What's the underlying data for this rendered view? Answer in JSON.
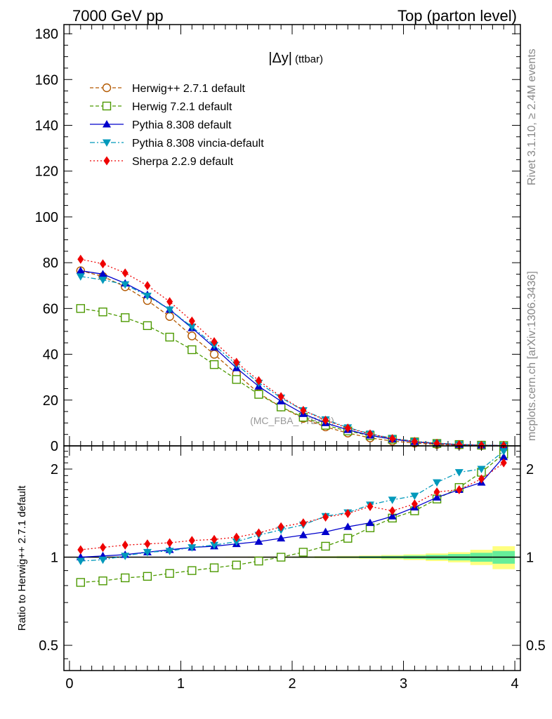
{
  "header": {
    "left_title": "7000 GeV pp",
    "right_title": "Top (parton level)"
  },
  "side_labels": {
    "rivet": "Rivet 3.1.10, ≥ 2.4M events",
    "mcplots": "mcplots.cern.ch [arXiv:1306.3436]"
  },
  "watermark": "(MC_FBA_TTBAR)",
  "colors": {
    "herwigpp": "#b35900",
    "herwig7": "#4c9900",
    "pythia": "#0000cc",
    "vincia": "#0099bb",
    "sherpa": "#ee0000",
    "band_outer": "#ffff80",
    "band_inner": "#66ee99"
  },
  "chart_data": [
    {
      "type": "line",
      "title_main": "|Δy|",
      "title_sub": "(ttbar)",
      "xlim": [
        -0.05,
        4.05
      ],
      "ylim": [
        0,
        184
      ],
      "x": [
        0.1,
        0.3,
        0.5,
        0.7,
        0.9,
        1.1,
        1.3,
        1.5,
        1.7,
        1.9,
        2.1,
        2.3,
        2.5,
        2.7,
        2.9,
        3.1,
        3.3,
        3.5,
        3.7,
        3.9
      ],
      "yticks": [
        "0",
        "20",
        "40",
        "60",
        "80",
        "100",
        "120",
        "140",
        "160",
        "180"
      ],
      "series": [
        {
          "name": "Herwig++ 2.7.1 default",
          "key": "herwigpp",
          "marker": "circle-open",
          "values": [
            76.5,
            74.0,
            69.5,
            63.5,
            56.5,
            48.0,
            40.0,
            31.5,
            23.0,
            17.0,
            12.0,
            8.3,
            5.6,
            3.5,
            2.1,
            1.2,
            0.65,
            0.33,
            0.15,
            0.05
          ]
        },
        {
          "name": "Herwig 7.2.1 default",
          "key": "herwig7",
          "marker": "square-open",
          "values": [
            60.0,
            58.5,
            56.0,
            52.5,
            47.5,
            42.0,
            35.5,
            29.0,
            22.5,
            17.0,
            12.5,
            9.0,
            6.5,
            4.5,
            2.9,
            1.75,
            1.05,
            0.58,
            0.3,
            0.14
          ]
        },
        {
          "name": "Pythia 8.308 default",
          "key": "pythia",
          "marker": "triangle-up",
          "values": [
            76.5,
            75.0,
            71.0,
            66.0,
            59.5,
            51.5,
            43.0,
            34.0,
            26.0,
            19.5,
            14.0,
            10.0,
            7.0,
            4.6,
            2.9,
            1.75,
            1.0,
            0.55,
            0.27,
            0.11
          ]
        },
        {
          "name": "Pythia 8.308 vincia-default",
          "key": "vincia",
          "marker": "triangle-down",
          "values": [
            74.0,
            72.5,
            70.5,
            65.5,
            59.5,
            52.0,
            44.0,
            35.5,
            27.5,
            21.0,
            15.5,
            11.5,
            8.0,
            5.3,
            3.3,
            2.0,
            1.2,
            0.65,
            0.31,
            0.12
          ]
        },
        {
          "name": "Sherpa 2.2.9 default",
          "key": "sherpa",
          "marker": "diamond",
          "values": [
            81.5,
            79.5,
            75.5,
            70.0,
            63.0,
            54.5,
            45.5,
            36.5,
            28.5,
            21.5,
            15.5,
            11.2,
            7.8,
            5.2,
            3.2,
            1.9,
            1.1,
            0.57,
            0.28,
            0.11
          ]
        }
      ]
    },
    {
      "type": "line",
      "ylabel": "Ratio to Herwig++ 2.7.1 default",
      "yscale": "log",
      "ylim": [
        0.41,
        2.4
      ],
      "xlim": [
        -0.05,
        4.05
      ],
      "xticks": [
        "0",
        "1",
        "2",
        "3",
        "4"
      ],
      "yticks": [
        "0.5",
        "1",
        "2"
      ],
      "x": [
        0.1,
        0.3,
        0.5,
        0.7,
        0.9,
        1.1,
        1.3,
        1.5,
        1.7,
        1.9,
        2.1,
        2.3,
        2.5,
        2.7,
        2.9,
        3.1,
        3.3,
        3.5,
        3.7,
        3.9
      ],
      "reference_band": {
        "x_edges": [
          0.0,
          0.2,
          0.4,
          0.6,
          0.8,
          1.0,
          1.2,
          1.4,
          1.6,
          1.8,
          2.0,
          2.2,
          2.4,
          2.6,
          2.8,
          3.0,
          3.2,
          3.4,
          3.6,
          3.8,
          4.0
        ],
        "outer_halfwidth": [
          0.003,
          0.003,
          0.003,
          0.003,
          0.003,
          0.003,
          0.003,
          0.004,
          0.005,
          0.005,
          0.006,
          0.008,
          0.01,
          0.013,
          0.017,
          0.022,
          0.03,
          0.04,
          0.06,
          0.09
        ],
        "inner_halfwidth": [
          0.002,
          0.002,
          0.002,
          0.002,
          0.002,
          0.002,
          0.002,
          0.002,
          0.003,
          0.003,
          0.004,
          0.005,
          0.006,
          0.008,
          0.01,
          0.013,
          0.018,
          0.025,
          0.035,
          0.05
        ]
      },
      "series": [
        {
          "name": "Herwig 7.2.1 default",
          "key": "herwig7",
          "marker": "square-open",
          "values": [
            0.82,
            0.83,
            0.85,
            0.86,
            0.88,
            0.9,
            0.92,
            0.94,
            0.97,
            1.0,
            1.04,
            1.09,
            1.16,
            1.26,
            1.36,
            1.44,
            1.58,
            1.73,
            1.95,
            2.25
          ]
        },
        {
          "name": "Pythia 8.308 default",
          "key": "pythia",
          "marker": "triangle-up",
          "values": [
            1.0,
            1.01,
            1.02,
            1.04,
            1.06,
            1.08,
            1.09,
            1.11,
            1.13,
            1.16,
            1.19,
            1.22,
            1.27,
            1.31,
            1.38,
            1.48,
            1.6,
            1.7,
            1.8,
            2.2
          ]
        },
        {
          "name": "Pythia 8.308 vincia-default",
          "key": "vincia",
          "marker": "triangle-down",
          "values": [
            0.97,
            0.98,
            1.01,
            1.04,
            1.05,
            1.08,
            1.1,
            1.13,
            1.19,
            1.24,
            1.29,
            1.38,
            1.42,
            1.51,
            1.57,
            1.62,
            1.8,
            1.95,
            2.0,
            2.3
          ]
        },
        {
          "name": "Sherpa 2.2.9 default",
          "key": "sherpa",
          "marker": "diamond",
          "values": [
            1.06,
            1.08,
            1.1,
            1.11,
            1.12,
            1.14,
            1.15,
            1.17,
            1.21,
            1.27,
            1.31,
            1.37,
            1.41,
            1.49,
            1.44,
            1.52,
            1.67,
            1.7,
            1.85,
            2.1
          ]
        }
      ]
    }
  ]
}
